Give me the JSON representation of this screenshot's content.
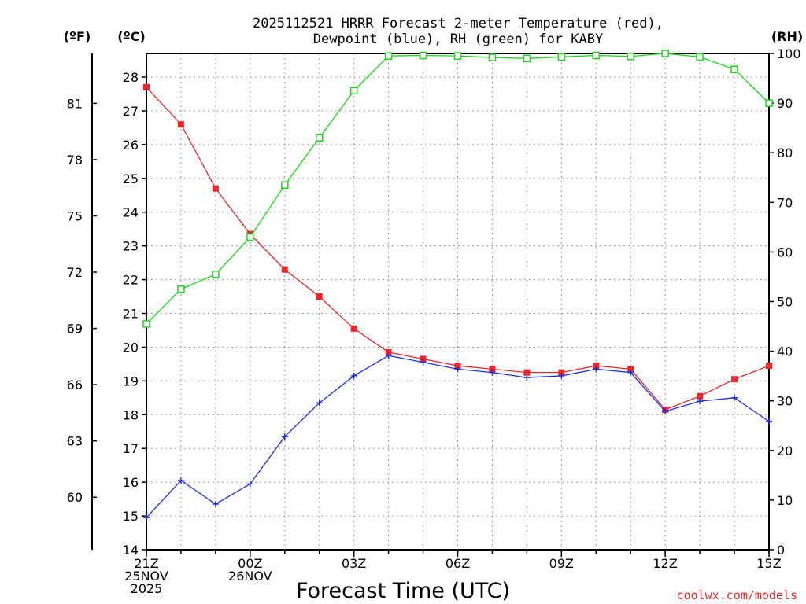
{
  "chart_data": {
    "type": "line",
    "title_line1": "2025112521 HRRR Forecast 2-meter Temperature (red),",
    "title_line2": "Dewpoint (blue), RH (green) for KABY",
    "xlabel": "Forecast Time (UTC)",
    "units_f": "(ºF)",
    "units_c": "(ºC)",
    "units_rh": "(RH)",
    "credit": "coolwx.com/models",
    "x_hours": [
      0,
      1,
      2,
      3,
      4,
      5,
      6,
      7,
      8,
      9,
      10,
      11,
      12,
      13,
      14,
      15,
      16,
      17,
      18
    ],
    "xlim": [
      0,
      18
    ],
    "x_ticks": [
      {
        "hour": 0,
        "lines": [
          "21Z",
          "25NOV",
          "2025"
        ]
      },
      {
        "hour": 3,
        "lines": [
          "00Z",
          "26NOV"
        ]
      },
      {
        "hour": 6,
        "lines": [
          "03Z"
        ]
      },
      {
        "hour": 9,
        "lines": [
          "06Z"
        ]
      },
      {
        "hour": 12,
        "lines": [
          "09Z"
        ]
      },
      {
        "hour": 15,
        "lines": [
          "12Z"
        ]
      },
      {
        "hour": 18,
        "lines": [
          "15Z"
        ]
      }
    ],
    "c_ylim": [
      14,
      28.7
    ],
    "c_ticks": [
      "14",
      "15",
      "16",
      "17",
      "18",
      "19",
      "20",
      "21",
      "22",
      "23",
      "24",
      "25",
      "26",
      "27",
      "28"
    ],
    "f_ticks": [
      "60",
      "63",
      "66",
      "69",
      "72",
      "75",
      "78",
      "81"
    ],
    "rh_ylim": [
      0,
      100
    ],
    "rh_ticks": [
      "0",
      "10",
      "20",
      "30",
      "40",
      "50",
      "60",
      "70",
      "80",
      "90",
      "100"
    ],
    "series": [
      {
        "name": "Temperature",
        "axis": "c",
        "color": "#e8282a",
        "marker": "filled-square",
        "values": [
          27.7,
          26.6,
          24.7,
          23.35,
          22.3,
          21.5,
          20.55,
          19.85,
          19.65,
          19.45,
          19.35,
          19.25,
          19.25,
          19.45,
          19.35,
          18.15,
          18.55,
          19.05,
          19.45
        ]
      },
      {
        "name": "Dewpoint",
        "axis": "c",
        "color": "#1f2fe8",
        "marker": "plus",
        "values": [
          14.95,
          16.05,
          15.35,
          15.95,
          17.35,
          18.35,
          19.15,
          19.75,
          19.55,
          19.35,
          19.25,
          19.1,
          19.15,
          19.35,
          19.25,
          18.1,
          18.4,
          18.5,
          17.8
        ]
      },
      {
        "name": "RH",
        "axis": "rh",
        "color": "#18d818",
        "marker": "open-square",
        "values": [
          45.5,
          52.5,
          55.5,
          63,
          73.5,
          83,
          92.5,
          99.5,
          99.6,
          99.5,
          99.2,
          99,
          99.3,
          99.6,
          99.4,
          100,
          99.3,
          96.8,
          90
        ]
      }
    ],
    "grid": true
  }
}
